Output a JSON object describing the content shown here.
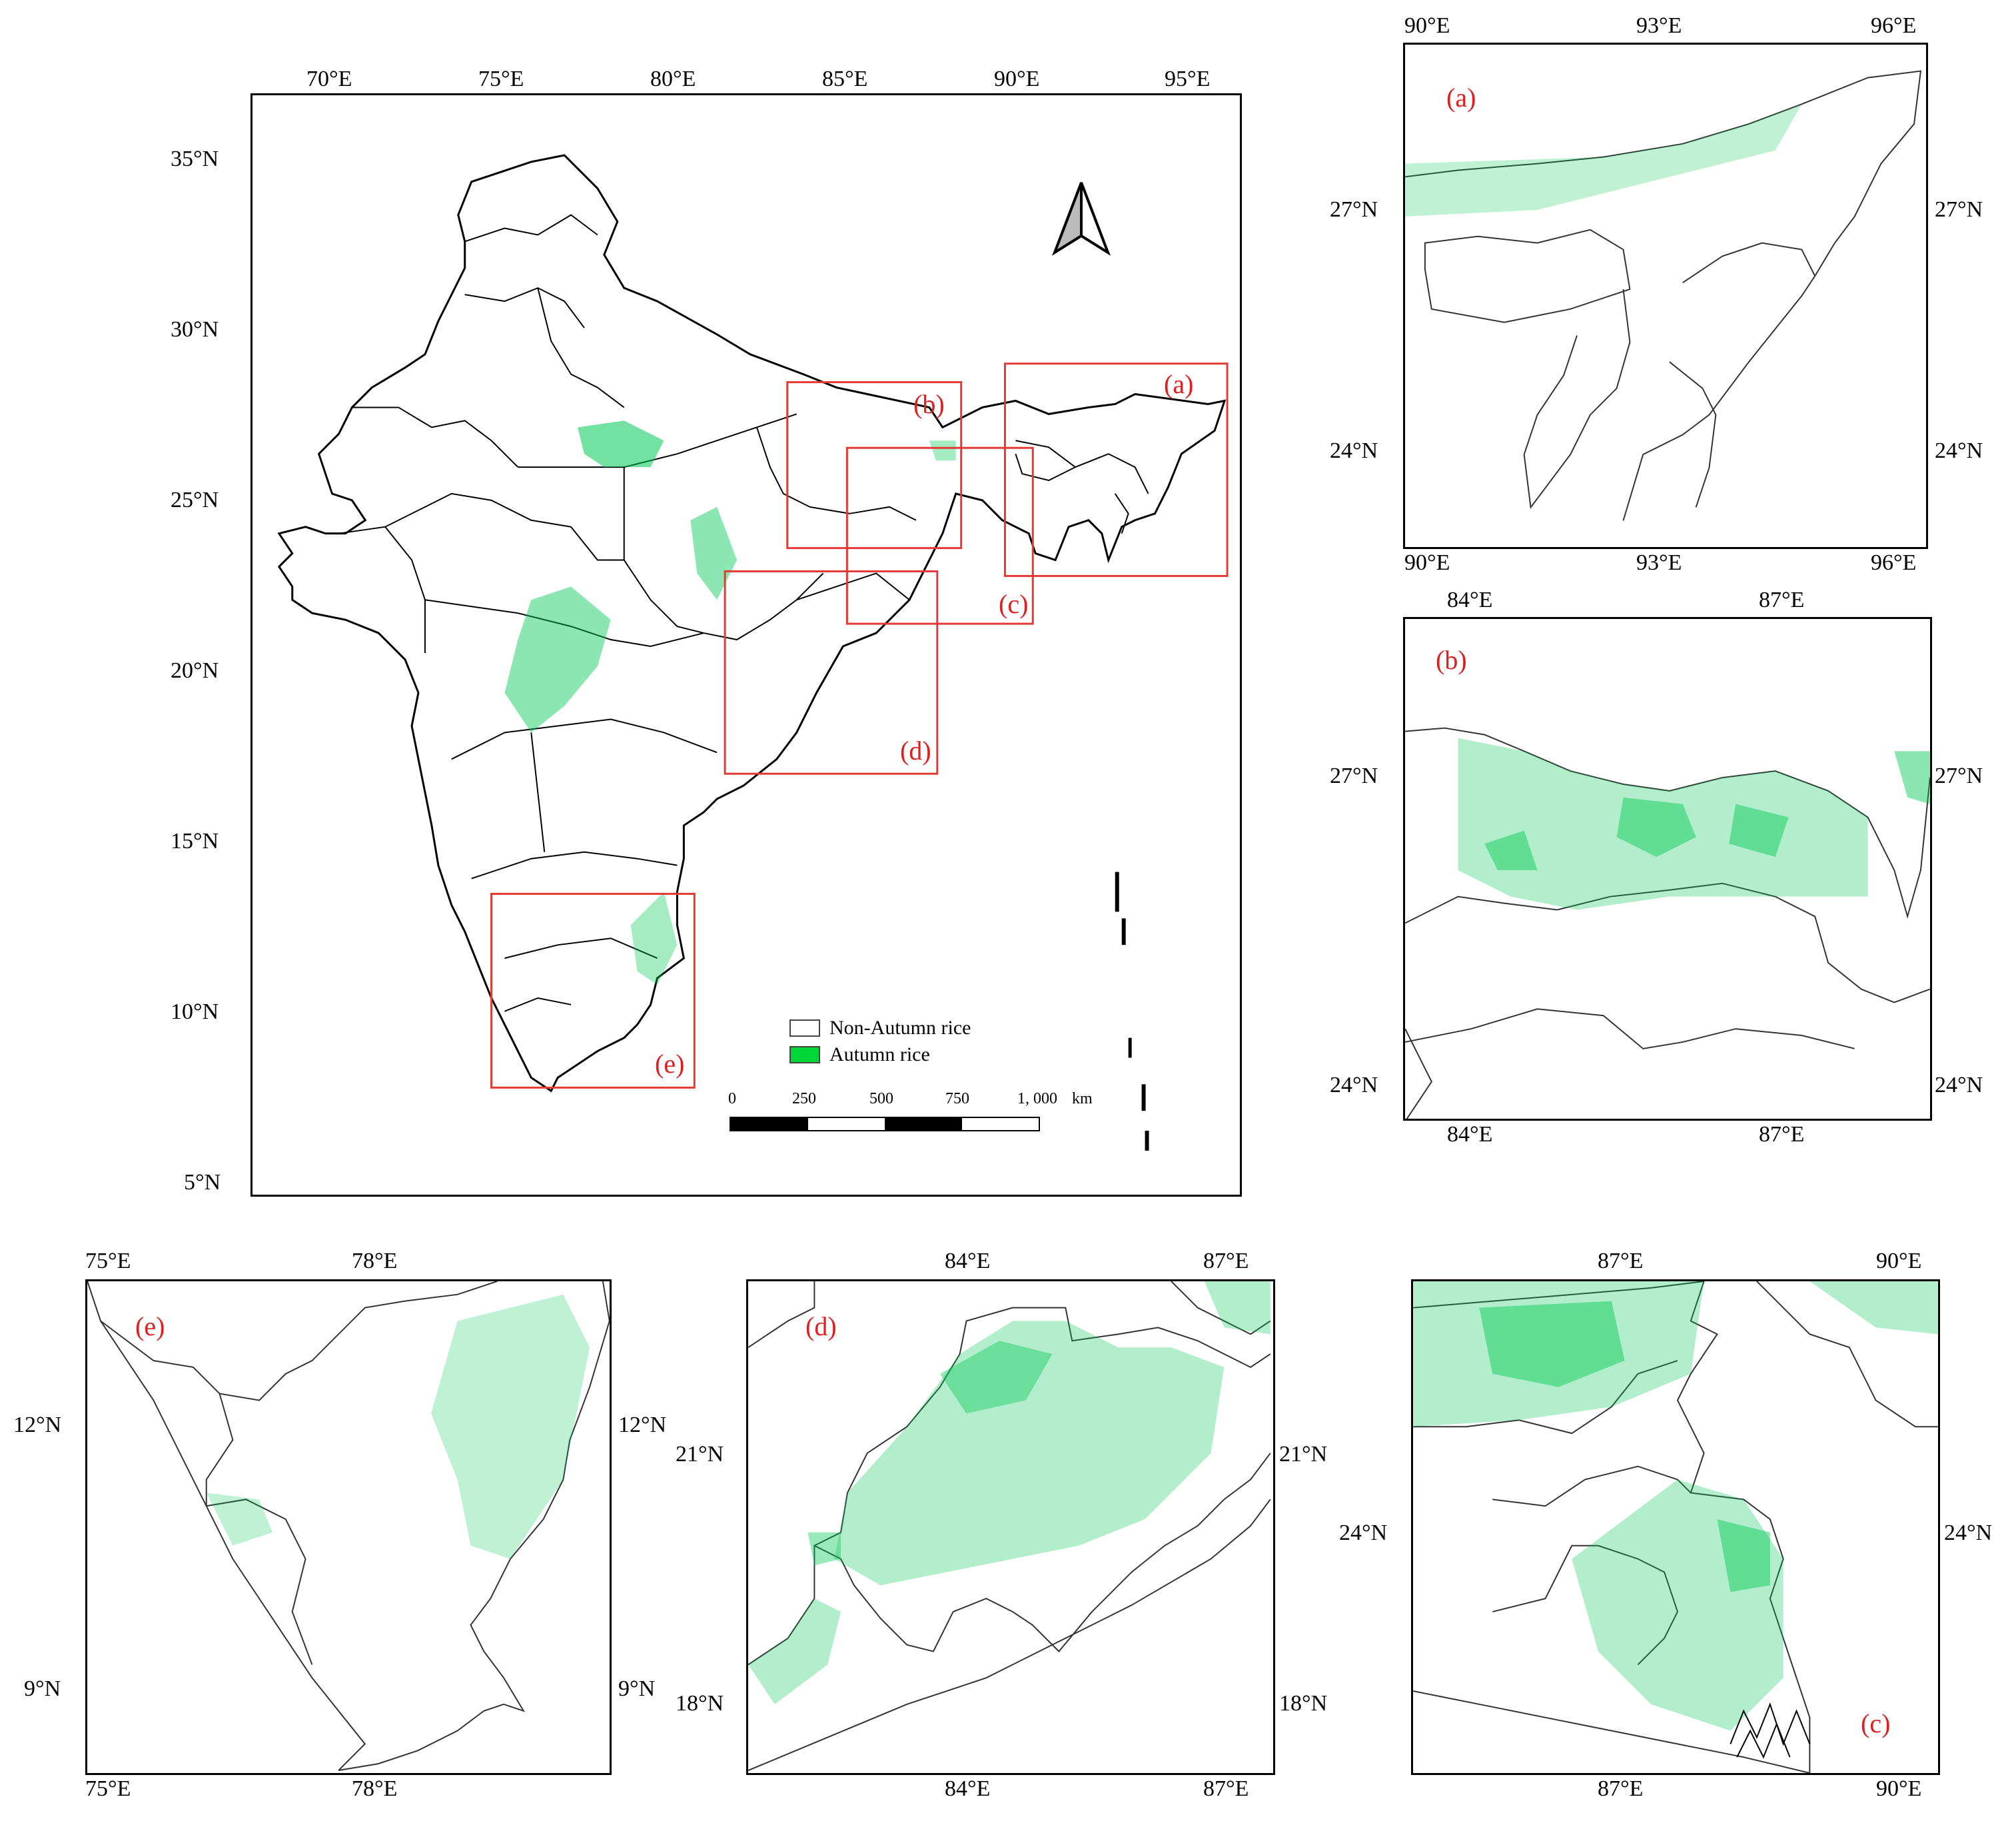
{
  "main_map": {
    "lon_ticks": [
      "70°E",
      "75°E",
      "80°E",
      "85°E",
      "90°E",
      "95°E"
    ],
    "lat_ticks": [
      "35°N",
      "30°N",
      "25°N",
      "20°N",
      "15°N",
      "10°N",
      "5°N"
    ],
    "boxes": [
      "(a)",
      "(b)",
      "(c)",
      "(d)",
      "(e)"
    ],
    "legend": [
      {
        "label": "Non-Autumn rice",
        "color": "#ffffff"
      },
      {
        "label": "Autumn rice",
        "color": "#00d637"
      }
    ],
    "scale_bar": {
      "labels": [
        "0",
        "250",
        "500",
        "750",
        "1, 000"
      ],
      "unit": "km"
    },
    "north_arrow": "north-arrow-icon"
  },
  "panel_a": {
    "label": "(a)",
    "top_ticks": [
      "90°E",
      "93°E",
      "96°E"
    ],
    "bottom_ticks": [
      "90°E",
      "93°E",
      "96°E"
    ],
    "left_ticks": [
      "27°N",
      "24°N"
    ],
    "right_ticks": [
      "27°N",
      "24°N"
    ]
  },
  "panel_b": {
    "label": "(b)",
    "top_ticks": [
      "84°E",
      "87°E"
    ],
    "bottom_ticks": [
      "84°E",
      "87°E"
    ],
    "left_ticks": [
      "27°N",
      "24°N"
    ],
    "right_ticks": [
      "27°N",
      "24°N"
    ]
  },
  "panel_e": {
    "label": "(e)",
    "top_ticks": [
      "75°E",
      "78°E"
    ],
    "bottom_ticks": [
      "75°E",
      "78°E"
    ],
    "left_ticks": [
      "12°N",
      "9°N"
    ],
    "right_ticks": [
      "12°N",
      "9°N"
    ]
  },
  "panel_d": {
    "label": "(d)",
    "top_ticks": [
      "84°E",
      "87°E"
    ],
    "bottom_ticks": [
      "84°E",
      "87°E"
    ],
    "left_ticks": [
      "21°N",
      "18°N"
    ],
    "right_ticks": [
      "21°N",
      "18°N"
    ]
  },
  "panel_c": {
    "label": "(c)",
    "top_ticks": [
      "87°E",
      "90°E"
    ],
    "bottom_ticks": [
      "87°E",
      "90°E"
    ],
    "left_ticks": [
      "24°N"
    ],
    "right_ticks": [
      "24°N"
    ]
  },
  "colors": {
    "rice": "#00c853",
    "rice_light": "#b9f2cf",
    "boxes": "#e53935",
    "label_text": "#e02020"
  }
}
